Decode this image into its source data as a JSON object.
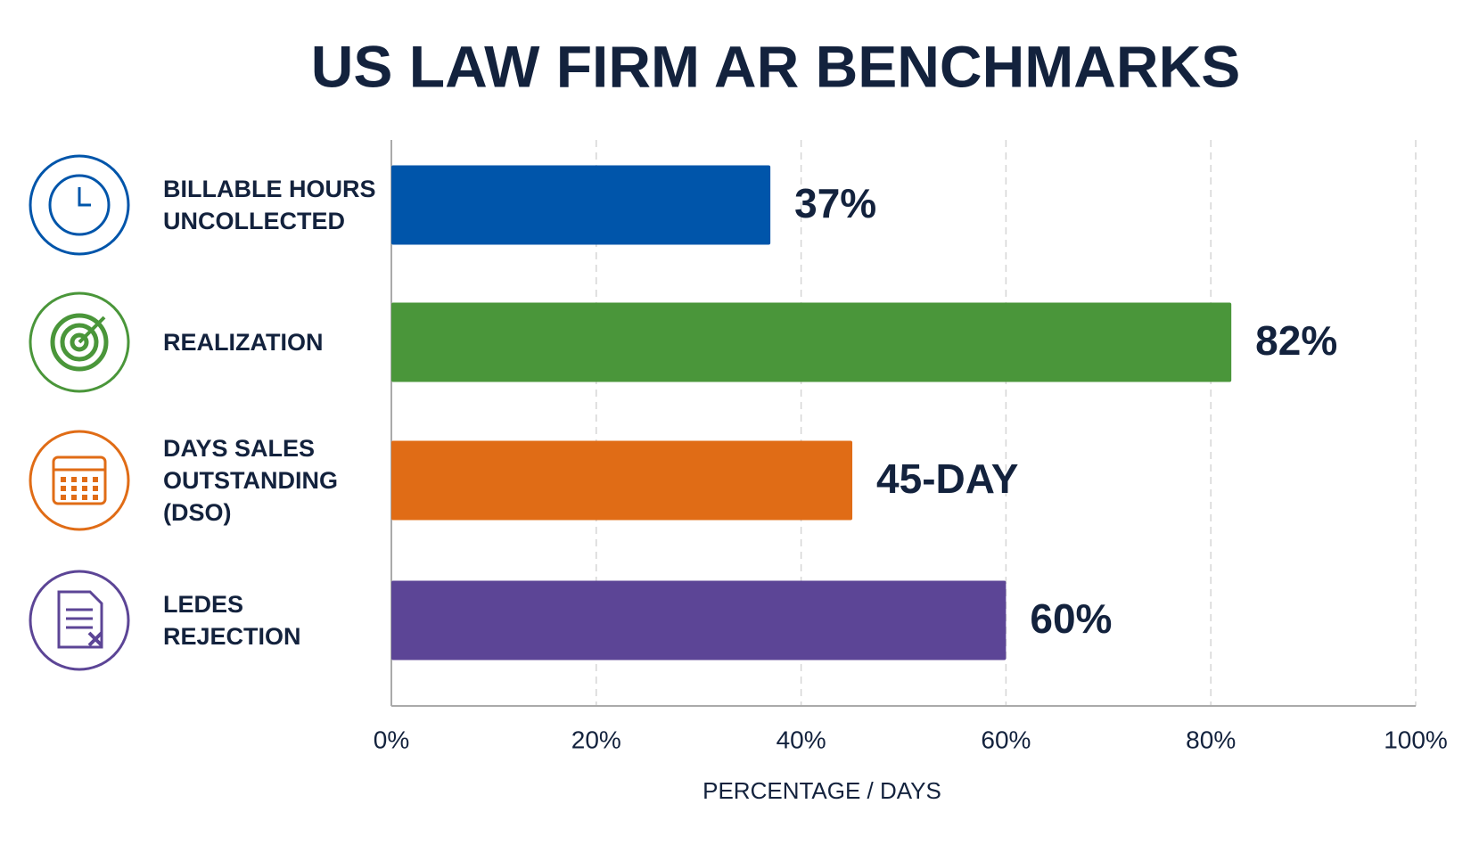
{
  "chart_data": {
    "type": "bar",
    "orientation": "horizontal",
    "title": "US LAW FIRM AR BENCHMARKS",
    "categories": [
      "BILLABLE HOURS UNCOLLECTED",
      "REALIZATION",
      "DAYS SALES OUTSTANDING (DSO)",
      "LEDES REJECTION"
    ],
    "values": [
      37,
      82,
      45,
      60
    ],
    "value_labels": [
      "37%",
      "82%",
      "45-DAY",
      "60%"
    ],
    "colors": [
      "#0055aa",
      "#4a963a",
      "#e06c16",
      "#5c4596"
    ],
    "xlabel": "PERCENTAGE / DAYS",
    "xlim": [
      0,
      100
    ],
    "xticks": [
      {
        "value": 0,
        "label": "0%"
      },
      {
        "value": 20,
        "label": "20%"
      },
      {
        "value": 40,
        "label": "40%"
      },
      {
        "value": 60,
        "label": "60%"
      },
      {
        "value": 80,
        "label": "80%"
      },
      {
        "value": 100,
        "label": "100%"
      }
    ],
    "grid": true
  }
}
